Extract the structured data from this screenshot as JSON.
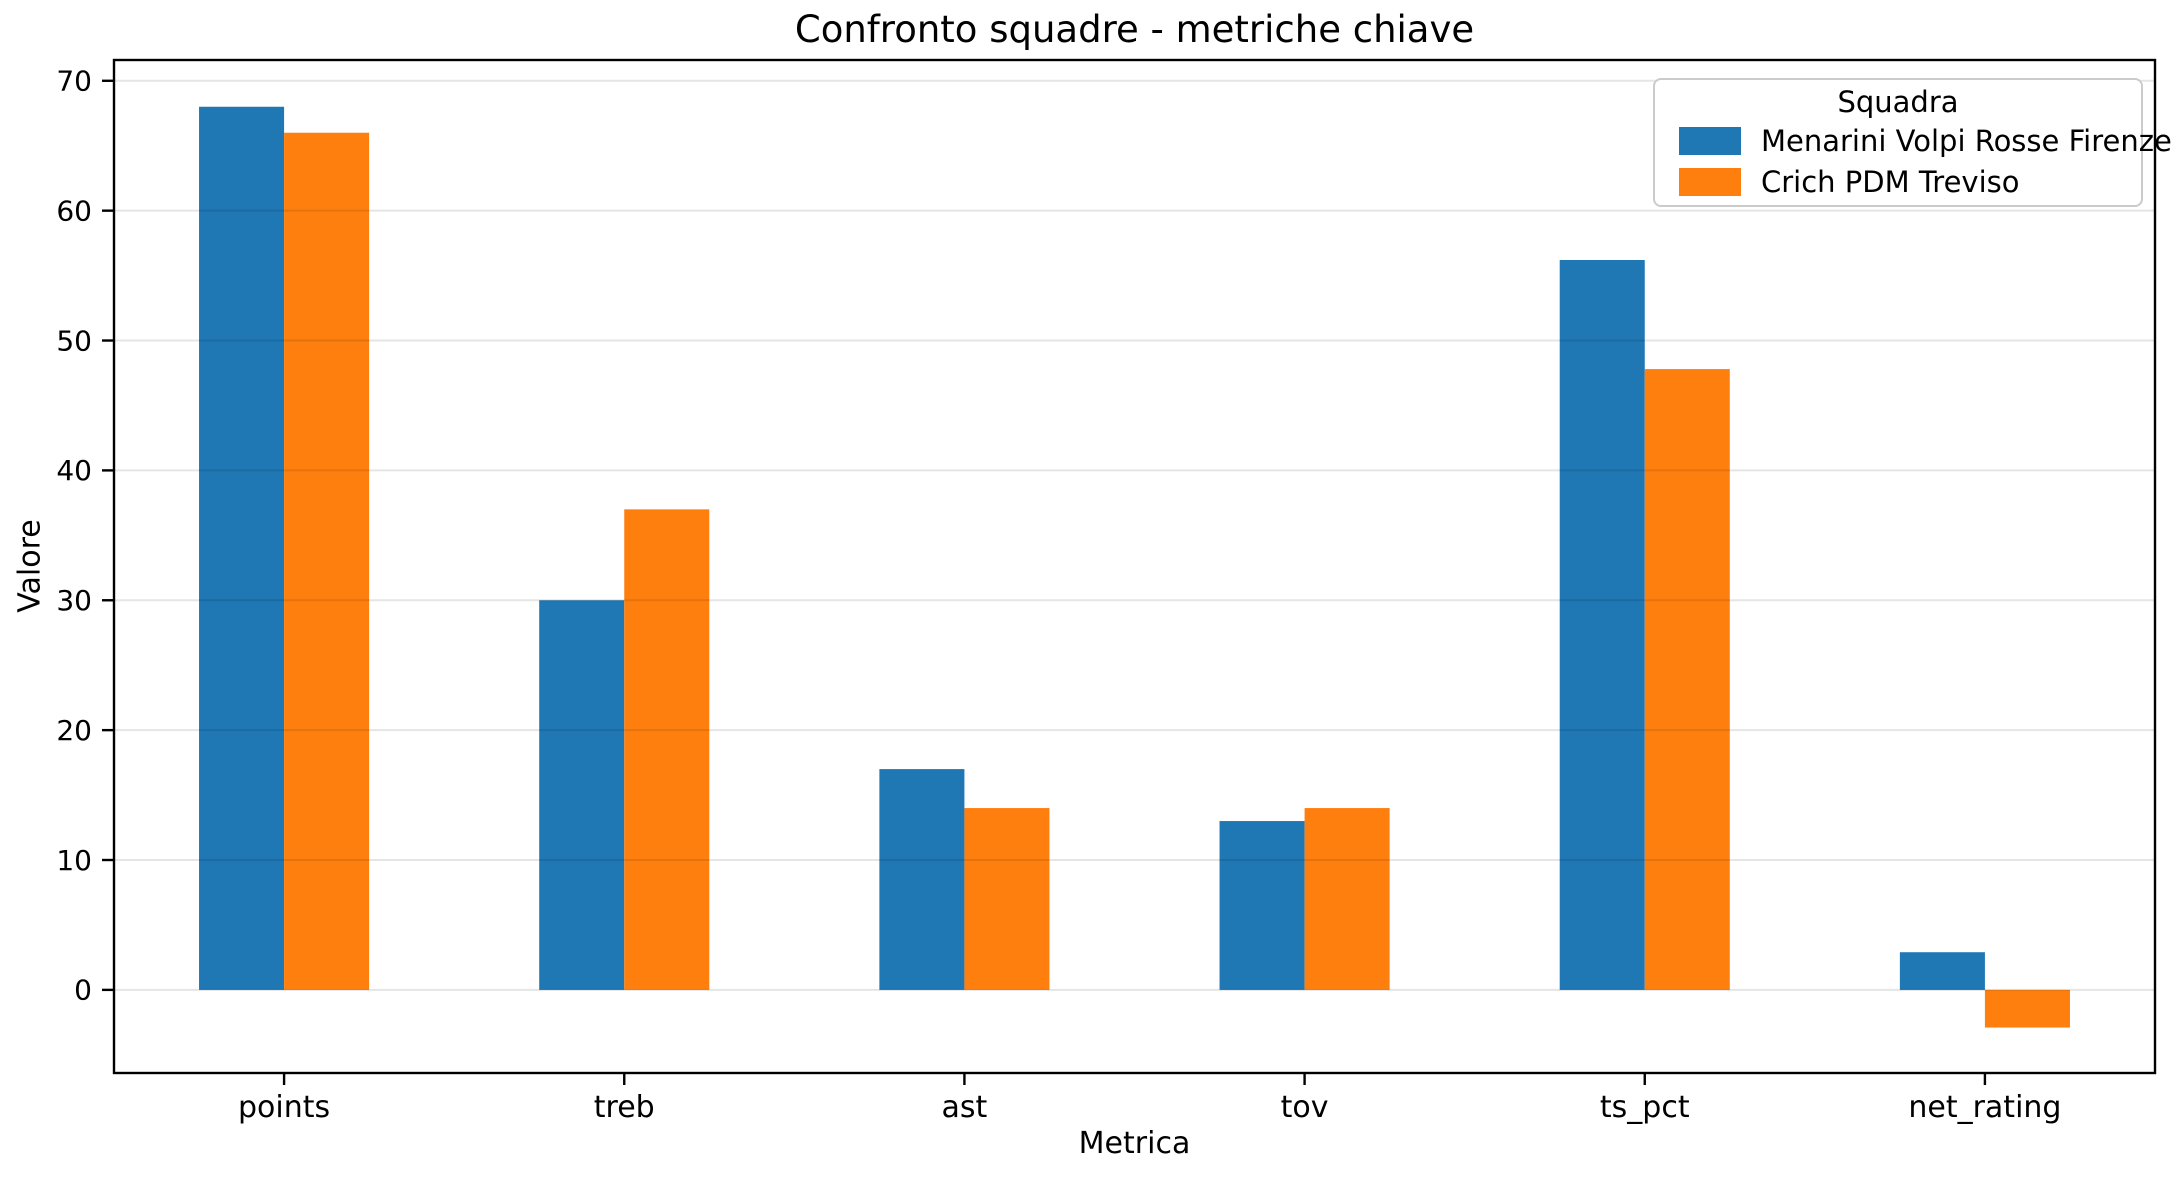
{
  "chart_data": {
    "type": "bar",
    "title": "Confronto squadre - metriche chiave",
    "xlabel": "Metrica",
    "ylabel": "Valore",
    "legend_title": "Squadra",
    "legend_position": "upper right",
    "grid": true,
    "categories": [
      "points",
      "treb",
      "ast",
      "tov",
      "ts_pct",
      "net_rating"
    ],
    "series": [
      {
        "name": "Menarini Volpi Rosse Firenze",
        "color": "#1f77b4",
        "values": [
          68,
          30,
          17,
          13,
          56.2,
          2.9
        ]
      },
      {
        "name": "Crich PDM Treviso",
        "color": "#ff7f0e",
        "values": [
          66,
          37,
          14,
          14,
          47.8,
          -2.9
        ]
      }
    ],
    "yticks": [
      0,
      10,
      20,
      30,
      40,
      50,
      60,
      70
    ],
    "ylim": [
      -6.4,
      71.6
    ],
    "style": {
      "axis_color": "#000000",
      "grid_color": "#e6e6e6"
    }
  }
}
